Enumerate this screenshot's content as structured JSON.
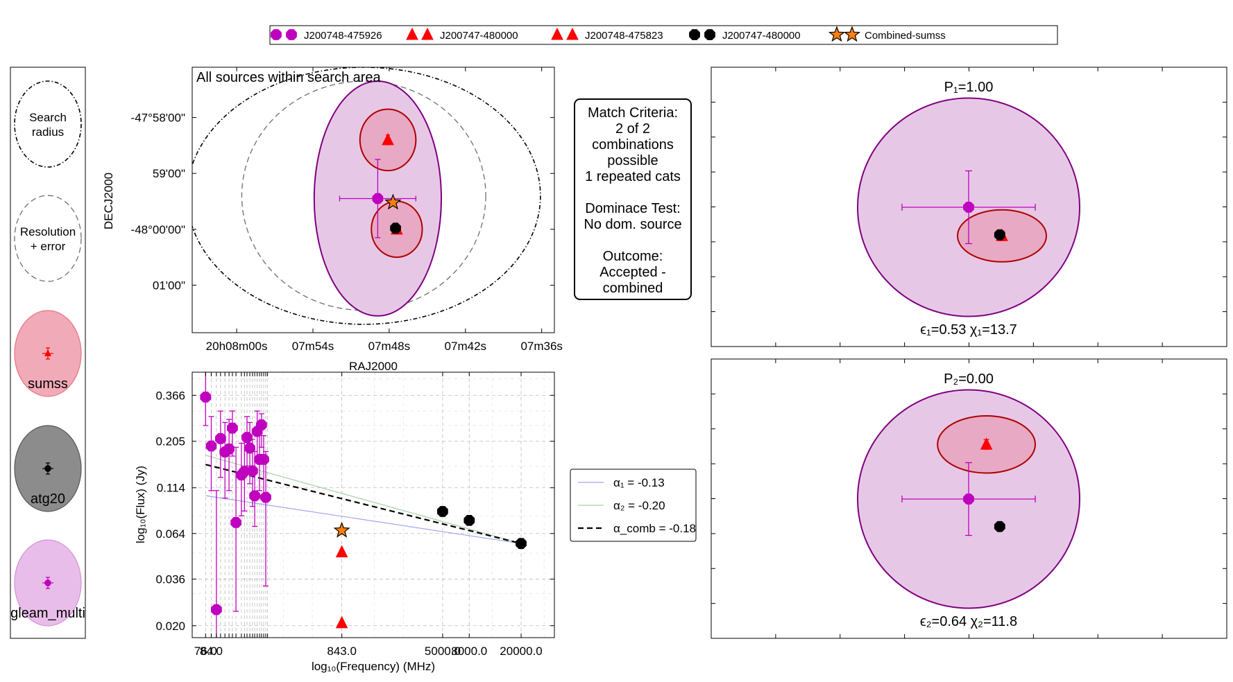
{
  "figure_legend": [
    {
      "label": "J200748-475926",
      "marker": "hexagon",
      "color": "#bf00bf"
    },
    {
      "label": "J200747-480000",
      "marker": "triangle",
      "color": "#ff0000"
    },
    {
      "label": "J200748-475823",
      "marker": "triangle",
      "color": "#ff0000"
    },
    {
      "label": "J200747-480000",
      "marker": "hexagon",
      "color": "#000000"
    },
    {
      "label": "Combined-sumss",
      "marker": "star",
      "color": "#ff7f0e"
    }
  ],
  "key_panel": [
    {
      "label": "Search\nradius",
      "style": "dotdash"
    },
    {
      "label": "Resolution\n+ error",
      "style": "dashed"
    },
    {
      "label": "sumss",
      "style": "fill",
      "fill": "#f1aab8",
      "edge": "#e8737f",
      "marker": "triangle",
      "color": "#ff0000"
    },
    {
      "label": "atg20",
      "style": "fill",
      "fill": "#8c8c8c",
      "edge": "#555555",
      "marker": "hexagon",
      "color": "#000000"
    },
    {
      "label": "gleam_multi",
      "style": "fill",
      "fill": "#e9bde9",
      "edge": "#d68fd6",
      "marker": "hexagon",
      "color": "#bf00bf"
    }
  ],
  "colors": {
    "gleam": "#bf00bf",
    "gleam_fill": "#e6c8e6",
    "gleam_edge": "#800080",
    "sumss": "#ff0000",
    "sumss_fill": "#e7a9c3",
    "sumss_edge": "#b00000",
    "atg20": "#000000",
    "combined": "#ff7f0e",
    "alpha1": "#a3a3f0",
    "alpha2": "#a6cfa6",
    "comb": "#000000"
  },
  "match_criteria": [
    "Match Criteria:",
    "2 of 2",
    "combinations",
    "possible",
    "1 repeated cats",
    "",
    "Dominace Test:",
    "No dom. source",
    "",
    "Outcome:",
    "Accepted -",
    "combined"
  ],
  "chart_data": [
    {
      "type": "scatter",
      "title": "All sources within search area",
      "xlabel": "RAJ2000",
      "ylabel": "DECJ2000",
      "x_ticks": [
        "20h08m00s",
        "07m54s",
        "07m48s",
        "07m42s",
        "07m36s"
      ],
      "y_ticks": [
        "-47°58'00\"",
        "59'00\"",
        "-48°00'00\"",
        "01'00\""
      ],
      "x_tick_seconds": [
        480,
        474,
        468,
        462,
        456
      ],
      "y_tick_arcmin": [
        -0.0,
        -1.0,
        -2.0,
        -3.0
      ],
      "xlim_seconds": [
        483.5,
        455.0
      ],
      "ylim_arcmin": [
        0.9,
        -3.85
      ],
      "search_radius": {
        "cx": 470.0,
        "cy": -1.4,
        "rx": 13.9,
        "ry": 2.3
      },
      "resolution": {
        "cx": 470.0,
        "cy": -1.4,
        "rx": 9.6,
        "ry": 2.05
      },
      "gleam": {
        "ra": 468.9,
        "dec": -1.45,
        "ra_err": 3.0,
        "dec_err": 0.7,
        "rx": 5.0,
        "ry": 2.1
      },
      "sumss": [
        {
          "ra": 468.1,
          "dec": -0.4,
          "rx": 2.2,
          "ry": 0.55
        },
        {
          "ra": 467.4,
          "dec": -2.0,
          "rx": 2.0,
          "ry": 0.5
        }
      ],
      "atg20": {
        "ra": 467.5,
        "dec": -1.98
      },
      "combined": {
        "ra": 467.7,
        "dec": -1.52
      }
    },
    {
      "type": "scatter",
      "xlabel": "log₁₀(Frequency) (MHz)",
      "ylabel": "log₁₀(Flux) (Jy)",
      "log_x": true,
      "log_y": true,
      "xlim": [
        60,
        36000
      ],
      "ylim": [
        0.0172,
        0.49
      ],
      "y_ticks": [
        0.366,
        0.205,
        0.114,
        0.064,
        0.036,
        0.02
      ],
      "x_ticks": [
        "76.0",
        "84.0",
        "92.0",
        "99.0",
        "107.0",
        "115.0",
        "122.0",
        "130.0",
        "143.0",
        "151.0",
        "158.0",
        "166.0",
        "174.0",
        "181.0",
        "189.0",
        "197.0",
        "204.0",
        "212.0",
        "220.0",
        "227.0",
        "843.0",
        "5000.0",
        "8000.0",
        "20000.0"
      ],
      "x_tick_values": [
        76,
        84,
        92,
        99,
        107,
        115,
        122,
        130,
        143,
        151,
        158,
        166,
        174,
        181,
        189,
        197,
        204,
        212,
        220,
        227,
        843,
        5000,
        8000,
        20000
      ],
      "x_tick_labels_shown": [
        "76.0",
        "84.0",
        "843.0",
        "5000.0",
        "8000.0",
        "20000.0"
      ],
      "series": [
        {
          "name": "J200748-475926",
          "marker": "hexagon",
          "color": "#bf00bf",
          "points": [
            [
              76,
              0.358,
              0.5,
              0.25
            ],
            [
              84,
              0.193,
              0.28,
              0.11
            ],
            [
              92,
              0.0245,
              0.11,
              0.012
            ],
            [
              99,
              0.212,
              0.3,
              0.13
            ],
            [
              107,
              0.179,
              0.26,
              0.1
            ],
            [
              115,
              0.186,
              0.27,
              0.11
            ],
            [
              122,
              0.242,
              0.3,
              0.17
            ],
            [
              130,
              0.0735,
              0.19,
              0.024
            ],
            [
              143,
              0.134,
              0.2,
              0.08
            ],
            [
              151,
              0.14,
              0.21,
              0.085
            ],
            [
              158,
              0.215,
              0.28,
              0.15
            ],
            [
              166,
              0.188,
              0.26,
              0.12
            ],
            [
              174,
              0.141,
              0.21,
              0.09
            ],
            [
              181,
              0.103,
              0.18,
              0.07
            ],
            [
              189,
              0.232,
              0.3,
              0.16
            ],
            [
              197,
              0.163,
              0.24,
              0.11
            ],
            [
              204,
              0.252,
              0.29,
              0.19
            ],
            [
              212,
              0.163,
              0.22,
              0.1
            ],
            [
              220,
              0.101,
              0.18,
              0.033
            ]
          ]
        },
        {
          "name": "J200747-480000",
          "marker": "triangle",
          "color": "#ff0000",
          "points": [
            [
              843,
              0.0506
            ]
          ]
        },
        {
          "name": "J200748-475823",
          "marker": "triangle",
          "color": "#ff0000",
          "points": [
            [
              843,
              0.0207
            ]
          ]
        },
        {
          "name": "J200747-480000",
          "marker": "hexagon",
          "color": "#000000",
          "points": [
            [
              5000,
              0.0845
            ],
            [
              8000,
              0.0755
            ],
            [
              20000,
              0.0564
            ]
          ]
        },
        {
          "name": "Combined-sumss",
          "marker": "star",
          "color": "#ff7f0e",
          "points": [
            [
              843,
              0.0665
            ]
          ]
        }
      ],
      "fits": [
        {
          "label": "α₁ = -0.13",
          "slope": -0.13,
          "x0": 76,
          "y0": 0.1032,
          "x1": 20000,
          "y1": 0.0564,
          "style": "solid",
          "color": "#a3a3f0"
        },
        {
          "label": "α₂ = -0.20",
          "slope": -0.2,
          "x0": 76,
          "y0": 0.1717,
          "x1": 20000,
          "y1": 0.0564,
          "style": "solid",
          "color": "#a6cfa6"
        },
        {
          "label": "α_comb = -0.18",
          "slope": -0.18,
          "x0": 76,
          "y0": 0.1528,
          "x1": 20000,
          "y1": 0.0564,
          "style": "dashed",
          "color": "#000000"
        }
      ]
    },
    {
      "type": "scatter",
      "title": "P₁=1.00",
      "footer": "ϵ₁=0.53 χ₁=13.7",
      "gleam": {
        "ra": 468.9,
        "dec": -1.45,
        "ra_err": 3.0,
        "dec_err": 0.7,
        "rx": 5.0,
        "ry": 2.1
      },
      "sumss": [
        {
          "ra": 467.4,
          "dec": -2.0,
          "rx": 2.0,
          "ry": 0.5
        }
      ],
      "atg20": {
        "ra": 467.5,
        "dec": -1.98
      }
    },
    {
      "type": "scatter",
      "title": "P₂=0.00",
      "footer": "ϵ₂=0.64 χ₂=11.8",
      "gleam": {
        "ra": 468.9,
        "dec": -1.45,
        "ra_err": 3.0,
        "dec_err": 0.7,
        "rx": 5.0,
        "ry": 2.1
      },
      "sumss": [
        {
          "ra": 468.1,
          "dec": -0.4,
          "rx": 2.2,
          "ry": 0.55
        }
      ],
      "atg20": {
        "ra": 467.5,
        "dec": -1.98
      }
    }
  ]
}
